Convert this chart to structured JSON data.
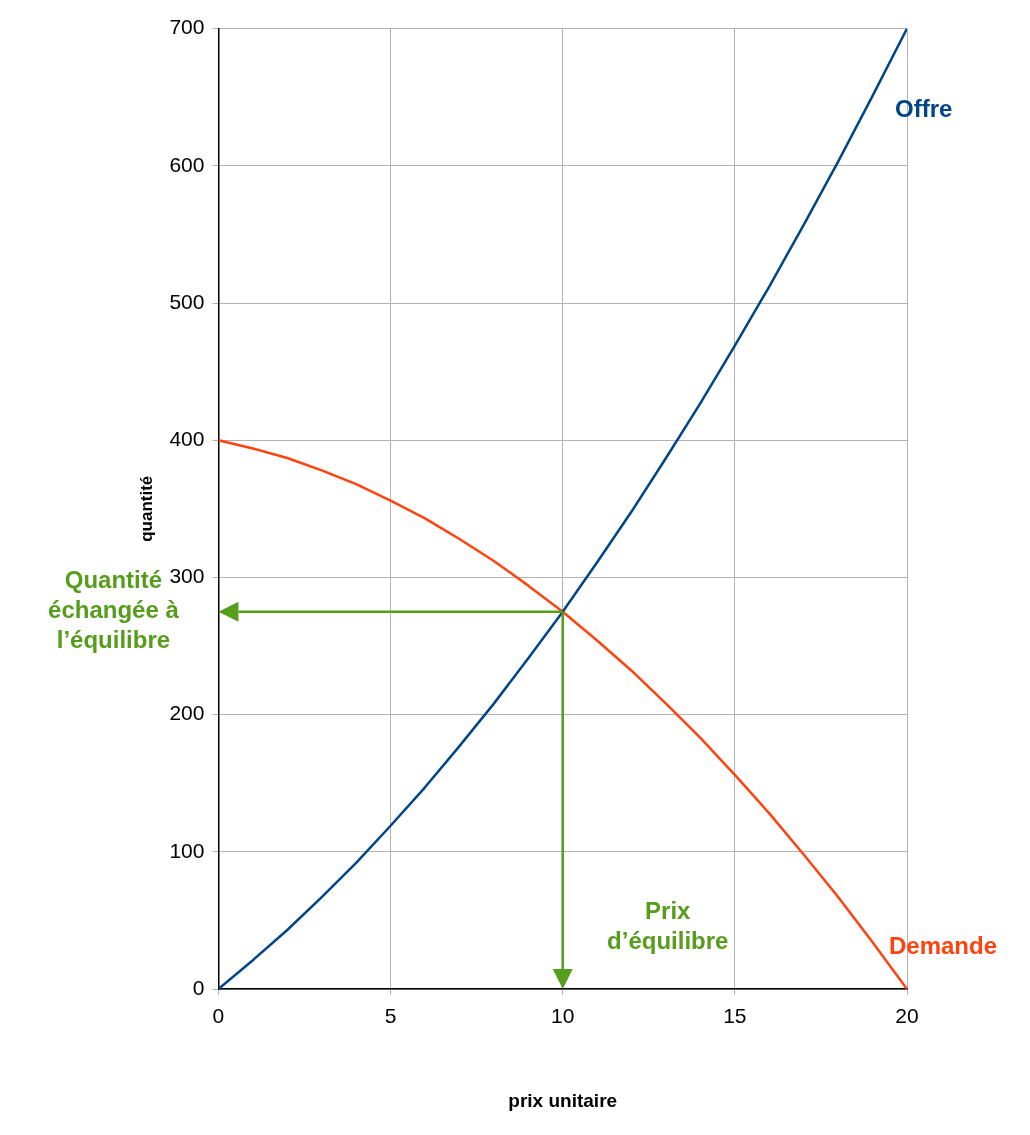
{
  "chart_data": {
    "type": "line",
    "xlabel": "prix unitaire",
    "ylabel": "quantité",
    "x": [
      0,
      1,
      2,
      3,
      4,
      5,
      6,
      7,
      8,
      9,
      10,
      11,
      12,
      13,
      14,
      15,
      16,
      17,
      18,
      19,
      20
    ],
    "series": [
      {
        "name": "Offre",
        "color": "#004586",
        "values": [
          0,
          21,
          43,
          67,
          92,
          119,
          147,
          177,
          208,
          241,
          275,
          311,
          348,
          387,
          427,
          469,
          512,
          557,
          603,
          651,
          700
        ]
      },
      {
        "name": "Demande",
        "color": "#ff420e",
        "values": [
          400,
          394,
          387,
          378,
          368,
          356,
          343,
          328,
          312,
          294,
          275,
          254,
          232,
          208,
          183,
          156,
          128,
          98,
          67,
          34,
          0
        ]
      }
    ],
    "xlim": [
      0,
      20
    ],
    "xticks": [
      0,
      5,
      10,
      15,
      20
    ],
    "ylim": [
      0,
      700
    ],
    "yticks": [
      0,
      100,
      200,
      300,
      400,
      500,
      600,
      700
    ],
    "grid": true,
    "legend": false,
    "marker": "none",
    "line_style": "solid",
    "annotations": [
      "Quantité échangée à l’équilibre",
      "Prix d’équilibre"
    ]
  }
}
